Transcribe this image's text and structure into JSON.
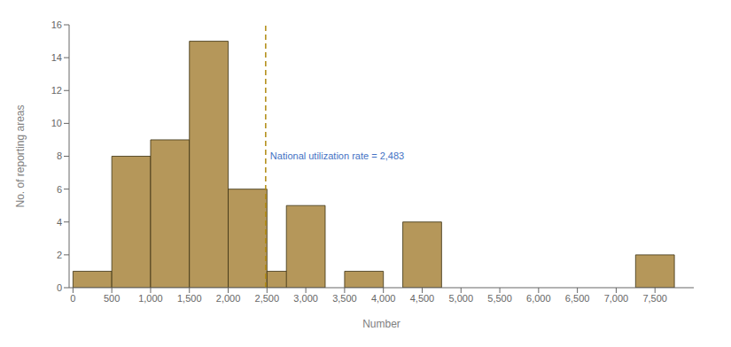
{
  "chart_data": {
    "type": "bar",
    "x": [
      0,
      500,
      1000,
      1500,
      2000,
      2500,
      2750,
      3500,
      4250,
      7250
    ],
    "widths": [
      500,
      500,
      500,
      500,
      500,
      500,
      500,
      500,
      500,
      500
    ],
    "values": [
      1,
      8,
      9,
      15,
      6,
      1,
      5,
      1,
      4,
      2
    ],
    "color": "#b5975a",
    "edge_color": "#3a3010",
    "xlabel": "Number",
    "ylabel": "No. of reporting areas",
    "xlim": [
      -50,
      8000
    ],
    "ylim": [
      0,
      16
    ],
    "xticks": [
      0,
      500,
      {
        "value": 1000,
        "label": "1,000"
      },
      {
        "value": 1500,
        "label": "1,500"
      },
      {
        "value": 2000,
        "label": "2,000"
      },
      {
        "value": 2500,
        "label": "2,500"
      },
      {
        "value": 3000,
        "label": "3,000"
      },
      {
        "value": 3500,
        "label": "3,500"
      },
      {
        "value": 4000,
        "label": "4,000"
      },
      {
        "value": 4500,
        "label": "4,500"
      },
      {
        "value": 5000,
        "label": "5,000"
      },
      {
        "value": 5500,
        "label": "5,500"
      },
      {
        "value": 6000,
        "label": "6,000"
      },
      {
        "value": 6500,
        "label": "6,500"
      },
      {
        "value": 7000,
        "label": "7,000"
      },
      {
        "value": 7500,
        "label": "7,500"
      }
    ],
    "yticks": [
      0,
      2,
      4,
      6,
      8,
      10,
      12,
      14,
      16
    ],
    "grid": false,
    "annotations": [
      {
        "type": "vline",
        "x": 2483,
        "text": "National utilization rate = 2,483",
        "color": "#b08a10",
        "label_color": "#4472c4",
        "line_style": "dashed"
      }
    ]
  }
}
